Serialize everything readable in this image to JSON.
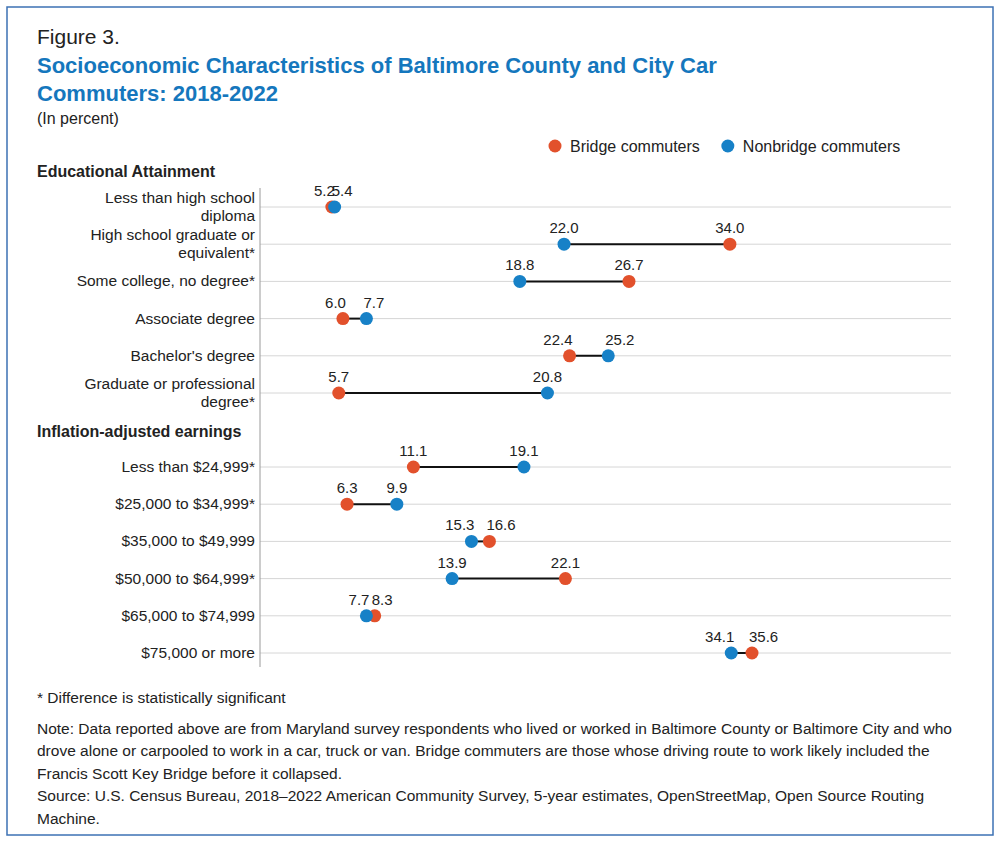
{
  "chart_data": {
    "type": "dumbbell",
    "orientation": "horizontal",
    "figure_label": "Figure 3.",
    "title": "Socioeconomic Characteristics of Baltimore County and City Car Commuters: 2018-2022",
    "subtitle": "(In percent)",
    "categories": [
      "Less than high school diploma",
      "High school graduate or equivalent*",
      "Some college, no degree*",
      "Associate degree",
      "Bachelor's degree",
      "Graduate or professional degree*",
      "Less than $24,999*",
      "$25,000 to $34,999*",
      "$35,000 to $49,999",
      "$50,000 to $64,999*",
      "$65,000 to $74,999",
      "$75,000 or more"
    ],
    "groups": [
      {
        "label": "Educational Attainment",
        "count": 6
      },
      {
        "label": "Inflation-adjusted earnings",
        "count": 6
      }
    ],
    "series": [
      {
        "name": "Bridge commuters",
        "color": "#e2512c",
        "marker": "circle",
        "values": [
          5.2,
          34.0,
          26.7,
          6.0,
          22.4,
          5.7,
          11.1,
          6.3,
          16.6,
          22.1,
          8.3,
          35.6
        ],
        "value_labels": [
          "5.2",
          "34.0",
          "26.7",
          "6.0",
          "22.4",
          "5.7",
          "11.1",
          "6.3",
          "16.6",
          "22.1",
          "8.3",
          "35.6"
        ]
      },
      {
        "name": "Nonbridge commuters",
        "color": "#1781c7",
        "marker": "circle",
        "values": [
          5.4,
          22.0,
          18.8,
          7.7,
          25.2,
          20.8,
          19.1,
          9.9,
          15.3,
          13.9,
          7.7,
          34.1
        ],
        "value_labels": [
          "5.4",
          "22.0",
          "18.8",
          "7.7",
          "25.2",
          "20.8",
          "19.1",
          "9.9",
          "15.3",
          "13.9",
          "7.7",
          "34.1"
        ]
      }
    ],
    "xlim": [
      0,
      50
    ],
    "xticks": [],
    "tick_labels": false,
    "data_labels": true,
    "grid": true,
    "legend": "top-right",
    "notes": [
      "* Difference is statistically significant",
      "Note: Data reported above are from Maryland survey respondents who lived or worked in Baltimore County or Baltimore City and who drove alone or carpooled to work in a car, truck or van. Bridge commuters are those whose driving route to work likely included the Francis Scott Key Bridge before it collapsed.",
      "Source: U.S. Census Bureau, 2018–2022 American Community Survey, 5-year estimates, OpenStreetMap, Open Source Routing Machine."
    ]
  }
}
